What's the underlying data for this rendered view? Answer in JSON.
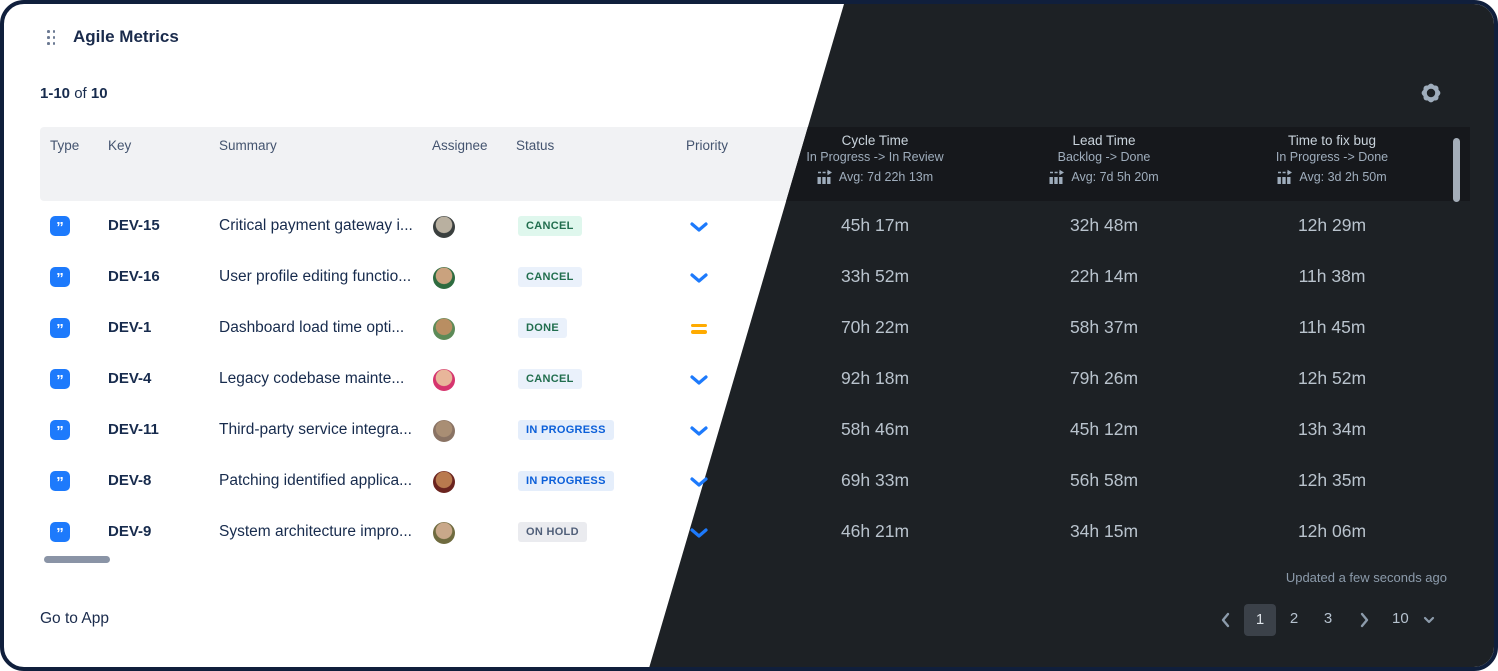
{
  "widget": {
    "title": "Agile Metrics",
    "count_range": "1-10",
    "count_of": "of",
    "count_total": "10"
  },
  "icons": {
    "drag": "drag-handle",
    "gear": "settings-gear",
    "type_story": "”",
    "metric": "bar-chart-arrow",
    "priority_low": "chevron-down",
    "priority_medium": "equals",
    "prev": "chevron-left",
    "next": "chevron-right",
    "page_size_caret": "chevron-down"
  },
  "colors": {
    "accent_blue": "#1d7afc",
    "amber": "#ffab00",
    "dark_bg": "#1d2125",
    "dark_band_bg": "#16181c",
    "light_band_bg": "#f1f2f4",
    "navy_text": "#172b4d"
  },
  "table": {
    "light_columns": [
      "Type",
      "Key",
      "Summary",
      "Assignee",
      "Status",
      "Priority"
    ],
    "metric_columns": [
      {
        "title": "Cycle Time",
        "subtitle": "In Progress -> In Review",
        "avg": "Avg: 7d 22h 13m"
      },
      {
        "title": "Lead Time",
        "subtitle": "Backlog -> Done",
        "avg": "Avg: 7d 5h 20m"
      },
      {
        "title": "Time to fix bug",
        "subtitle": "In Progress -> Done",
        "avg": "Avg: 3d 2h 50m"
      }
    ],
    "rows": [
      {
        "key": "DEV-15",
        "summary": "Critical payment gateway i...",
        "status": {
          "label": "CANCEL",
          "bg": "#dff7ed",
          "color": "#216e4e"
        },
        "priority": "low",
        "avatar": {
          "inner": "#b9b0a0",
          "outer": "#3a3f3e"
        },
        "cycle": "45h 17m",
        "lead": "32h 48m",
        "fix": "12h 29m"
      },
      {
        "key": "DEV-16",
        "summary": "User profile editing functio...",
        "status": {
          "label": "CANCEL",
          "bg": "#eaf1fb",
          "color": "#216e4e"
        },
        "priority": "low",
        "avatar": {
          "inner": "#caa27e",
          "outer": "#2e6b3f"
        },
        "cycle": "33h 52m",
        "lead": "22h 14m",
        "fix": "11h 38m"
      },
      {
        "key": "DEV-1",
        "summary": "Dashboard load time opti...",
        "status": {
          "label": "DONE",
          "bg": "#eaf1fb",
          "color": "#216e4e"
        },
        "priority": "medium",
        "avatar": {
          "inner": "#b98e62",
          "outer": "#5c8a57"
        },
        "cycle": "70h 22m",
        "lead": "58h 37m",
        "fix": "11h 45m"
      },
      {
        "key": "DEV-4",
        "summary": "Legacy codebase mainte...",
        "status": {
          "label": "CANCEL",
          "bg": "#eaf1fb",
          "color": "#216e4e"
        },
        "priority": "low",
        "avatar": {
          "inner": "#e8b69a",
          "outer": "#d6356e"
        },
        "cycle": "92h 18m",
        "lead": "79h 26m",
        "fix": "12h 52m"
      },
      {
        "key": "DEV-11",
        "summary": "Third-party service integra...",
        "status": {
          "label": "IN PROGRESS",
          "bg": "#e5eefb",
          "color": "#0b5fd9"
        },
        "priority": "low",
        "avatar": {
          "inner": "#a98e74",
          "outer": "#8a7364"
        },
        "cycle": "58h 46m",
        "lead": "45h 12m",
        "fix": "13h 34m"
      },
      {
        "key": "DEV-8",
        "summary": "Patching identified applica...",
        "status": {
          "label": "IN PROGRESS",
          "bg": "#e5eefb",
          "color": "#0b5fd9"
        },
        "priority": "low",
        "avatar": {
          "inner": "#b97a4e",
          "outer": "#6b241f"
        },
        "cycle": "69h 33m",
        "lead": "56h 58m",
        "fix": "12h 35m"
      },
      {
        "key": "DEV-9",
        "summary": "System architecture impro...",
        "status": {
          "label": "ON HOLD",
          "bg": "#eaebef",
          "color": "#505f79"
        },
        "priority": "low",
        "avatar": {
          "inner": "#c9a88a",
          "outer": "#6f6b3f"
        },
        "cycle": "46h 21m",
        "lead": "34h 15m",
        "fix": "12h 06m"
      }
    ]
  },
  "footer": {
    "go_to_app": "Go to App",
    "updated": "Updated a few seconds ago",
    "pages": [
      "1",
      "2",
      "3"
    ],
    "active_page": "1",
    "page_size": "10"
  }
}
